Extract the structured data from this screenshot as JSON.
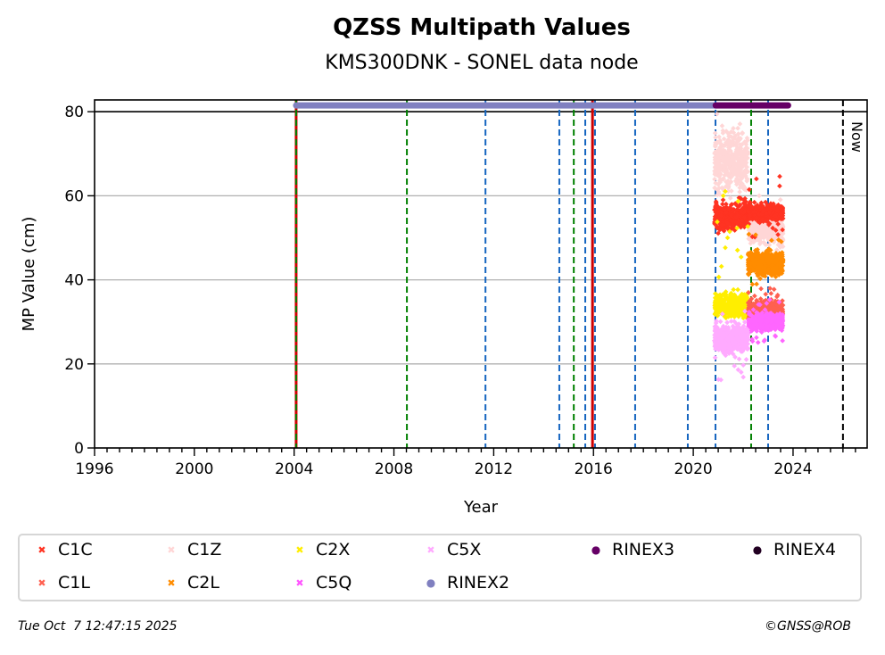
{
  "chart_data": {
    "type": "scatter",
    "title": "QZSS Multipath Values",
    "subtitle": "KMS300DNK - SONEL data node",
    "xlabel": "Year",
    "ylabel": "MP Value (cm)",
    "xlim": [
      1996,
      2026.97
    ],
    "ylim": [
      0,
      82.8
    ],
    "x_ticks": [
      1996,
      2000,
      2004,
      2008,
      2012,
      2016,
      2020,
      2024
    ],
    "x_minor_step_years": 0.5,
    "y_ticks": [
      0,
      20,
      40,
      60,
      80
    ],
    "grid": "horizontal",
    "legend_placement": "below",
    "now_label": "Now",
    "now_year": 2026.0,
    "vertical_lines": [
      {
        "year": 2004.08,
        "color": "#d00000",
        "style": "solid"
      },
      {
        "year": 2004.08,
        "color": "#008000",
        "style": "dashed"
      },
      {
        "year": 2008.52,
        "color": "#008000",
        "style": "dashed"
      },
      {
        "year": 2011.67,
        "color": "#1565c0",
        "style": "dashed"
      },
      {
        "year": 2014.63,
        "color": "#1565c0",
        "style": "dashed"
      },
      {
        "year": 2015.21,
        "color": "#008000",
        "style": "dashed"
      },
      {
        "year": 2015.67,
        "color": "#1565c0",
        "style": "dashed"
      },
      {
        "year": 2015.96,
        "color": "#d00000",
        "style": "solid"
      },
      {
        "year": 2016.06,
        "color": "#1565c0",
        "style": "dashed"
      },
      {
        "year": 2017.67,
        "color": "#1565c0",
        "style": "dashed"
      },
      {
        "year": 2019.78,
        "color": "#1565c0",
        "style": "dashed"
      },
      {
        "year": 2020.89,
        "color": "#1565c0",
        "style": "dashed"
      },
      {
        "year": 2022.32,
        "color": "#008000",
        "style": "dashed"
      },
      {
        "year": 2023.0,
        "color": "#1565c0",
        "style": "dashed"
      }
    ],
    "rinex_bars": [
      {
        "name": "RINEX2",
        "color": "#8080c0",
        "start": 2004.08,
        "end": 2020.9,
        "y": 81.5
      },
      {
        "name": "RINEX3",
        "color": "#660066",
        "start": 2020.9,
        "end": 2023.8,
        "y": 81.5
      }
    ],
    "series": [
      {
        "name": "C1Z",
        "color": "#ffd6d6",
        "marker": "x",
        "x_range": [
          2020.85,
          2022.2
        ],
        "y_center": 68,
        "y_spread": 9,
        "y_max": 80,
        "y_min": 58
      },
      {
        "name": "C1Z",
        "color": "#ffd6d6",
        "marker": "x",
        "x_range": [
          2022.2,
          2023.6
        ],
        "y_center": 52,
        "y_spread": 5,
        "y_max": 62,
        "y_min": 44
      },
      {
        "name": "C1C",
        "color": "#ff3322",
        "marker": "x",
        "x_range": [
          2020.85,
          2022.2
        ],
        "y_center": 55,
        "y_spread": 4,
        "y_max": 60,
        "y_min": 50
      },
      {
        "name": "C1C",
        "color": "#ff3322",
        "marker": "x",
        "x_range": [
          2022.2,
          2023.6
        ],
        "y_center": 56,
        "y_spread": 3,
        "y_max": 65,
        "y_min": 50
      },
      {
        "name": "C2L",
        "color": "#ff8c00",
        "marker": "x",
        "x_range": [
          2022.2,
          2023.6
        ],
        "y_center": 44,
        "y_spread": 4,
        "y_max": 52,
        "y_min": 38
      },
      {
        "name": "C2X",
        "color": "#ffee00",
        "marker": "x",
        "x_range": [
          2020.85,
          2022.2
        ],
        "y_center": 34,
        "y_spread": 4,
        "y_max": 62,
        "y_min": 26
      },
      {
        "name": "C1L",
        "color": "#ff6050",
        "marker": "x",
        "x_range": [
          2022.2,
          2023.6
        ],
        "y_center": 33,
        "y_spread": 3,
        "y_max": 38,
        "y_min": 28
      },
      {
        "name": "C5Q",
        "color": "#ff66ff",
        "marker": "x",
        "x_range": [
          2022.2,
          2023.6
        ],
        "y_center": 30,
        "y_spread": 3,
        "y_max": 36,
        "y_min": 24
      },
      {
        "name": "C5X",
        "color": "#ffaaff",
        "marker": "x",
        "x_range": [
          2020.85,
          2022.2
        ],
        "y_center": 26,
        "y_spread": 5,
        "y_max": 33,
        "y_min": 16
      }
    ]
  },
  "legend": {
    "items": [
      {
        "label": "C1C",
        "color": "#ff3322",
        "marker": "✖"
      },
      {
        "label": "C1L",
        "color": "#ff6050",
        "marker": "✖"
      },
      {
        "label": "C1Z",
        "color": "#ffd6d6",
        "marker": "✖"
      },
      {
        "label": "C2L",
        "color": "#ff8c00",
        "marker": "✖"
      },
      {
        "label": "C2X",
        "color": "#ffee00",
        "marker": "✖"
      },
      {
        "label": "C5Q",
        "color": "#ff55ff",
        "marker": "✖"
      },
      {
        "label": "C5X",
        "color": "#ffaaff",
        "marker": "✖"
      },
      {
        "label": "RINEX2",
        "color": "#8080c0",
        "marker": "●"
      },
      {
        "label": "RINEX3",
        "color": "#660066",
        "marker": "●"
      },
      {
        "label": "RINEX4",
        "color": "#220022",
        "marker": "●"
      }
    ]
  },
  "footer": {
    "timestamp": "Tue Oct  7 12:47:15 2025",
    "credit": "©GNSS@ROB"
  }
}
